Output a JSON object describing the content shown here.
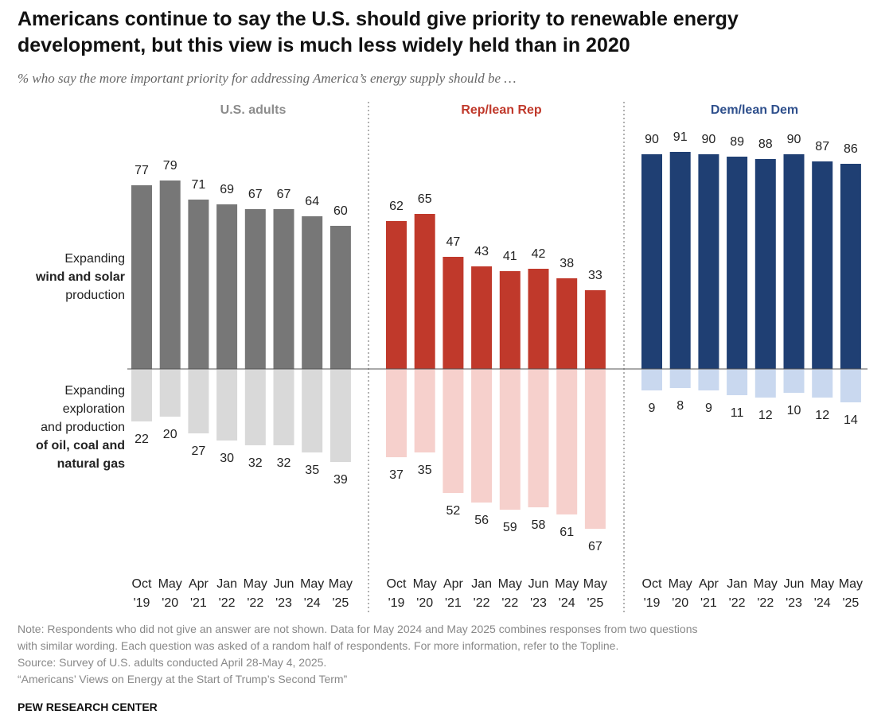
{
  "header": {
    "title_line1": "Americans continue to say the U.S. should give priority to renewable energy",
    "title_line2": "development, but this view is much less widely held than in 2020",
    "subtitle": "% who say the more important priority for addressing America’s energy supply should be …"
  },
  "chart_data": {
    "type": "bar",
    "layout": "diverging bars in three panels",
    "row_labels": {
      "positive": [
        "Expanding",
        "wind and solar",
        "production"
      ],
      "negative": [
        "Expanding",
        "exploration",
        "and production",
        "of oil, coal and",
        "natural gas"
      ]
    },
    "categories": [
      [
        "Oct",
        "'19"
      ],
      [
        "May",
        "'20"
      ],
      [
        "Apr",
        "'21"
      ],
      [
        "Jan",
        "'22"
      ],
      [
        "May",
        "'22"
      ],
      [
        "Jun",
        "'23"
      ],
      [
        "May",
        "'24"
      ],
      [
        "May",
        "'25"
      ]
    ],
    "panels": [
      {
        "name": "U.S. adults",
        "title_color": "#8c8c8c",
        "positive_color": "#777777",
        "negative_color": "#d9d9d9",
        "series": [
          {
            "name": "Expanding wind and solar production",
            "values": [
              77,
              79,
              71,
              69,
              67,
              67,
              64,
              60
            ]
          },
          {
            "name": "Expanding exploration and production of oil, coal and natural gas",
            "values": [
              22,
              20,
              27,
              30,
              32,
              32,
              35,
              39
            ]
          }
        ]
      },
      {
        "name": "Rep/lean Rep",
        "title_color": "#c0392b",
        "positive_color": "#c0392b",
        "negative_color": "#f6d0cc",
        "series": [
          {
            "name": "Expanding wind and solar production",
            "values": [
              62,
              65,
              47,
              43,
              41,
              42,
              38,
              33
            ]
          },
          {
            "name": "Expanding exploration and production of oil, coal and natural gas",
            "values": [
              37,
              35,
              52,
              56,
              59,
              58,
              61,
              67
            ]
          }
        ]
      },
      {
        "name": "Dem/lean Dem",
        "title_color": "#2e4f8c",
        "positive_color": "#1f3f73",
        "negative_color": "#c9d8ef",
        "series": [
          {
            "name": "Expanding wind and solar production",
            "values": [
              90,
              91,
              90,
              89,
              88,
              90,
              87,
              86
            ]
          },
          {
            "name": "Expanding exploration and production of oil, coal and natural gas",
            "values": [
              9,
              8,
              9,
              11,
              12,
              10,
              12,
              14
            ]
          }
        ]
      }
    ],
    "grid": false,
    "legend": "none"
  },
  "footer": {
    "note_lines": [
      "Note: Respondents who did not give an answer are not shown. Data for May 2024 and May 2025 combines responses from two questions",
      "with similar wording. Each question was asked of a random half of respondents. For more information, refer to the Topline.",
      "Source: Survey of U.S. adults conducted April 28-May 4, 2025.",
      "“Americans’ Views on Energy at the Start of Trump’s Second Term”"
    ],
    "brand": "PEW RESEARCH CENTER"
  }
}
